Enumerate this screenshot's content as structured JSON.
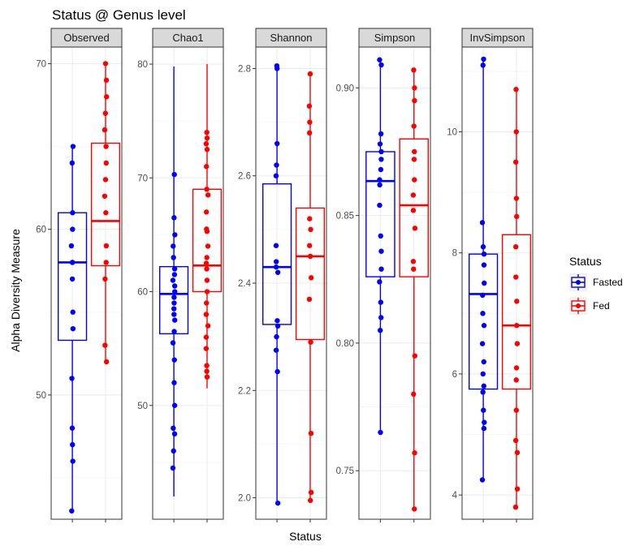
{
  "chart_data": {
    "type": "box",
    "title": "Status  @  Genus level",
    "xlabel": "Status",
    "ylabel": "Alpha Diversity Measure",
    "legend": {
      "title": "Status",
      "position": "right",
      "items": [
        {
          "label": "Fasted",
          "color": "#0000ff"
        },
        {
          "label": "Fed",
          "color": "#ff0000"
        }
      ]
    },
    "categories": [
      "Fasted",
      "Fed"
    ],
    "panels": [
      {
        "name": "Observed",
        "ylim": [
          42.5,
          71
        ],
        "yticks": [
          50,
          60,
          70
        ],
        "series": [
          {
            "name": "Fasted",
            "box": {
              "min": 43,
              "q1": 53.3,
              "median": 58,
              "q3": 61,
              "max": 65
            },
            "points": [
              43,
              46,
              47,
              48,
              51,
              54,
              55,
              57,
              58,
              58,
              59,
              60,
              61,
              64,
              65
            ]
          },
          {
            "name": "Fed",
            "box": {
              "min": 52,
              "q1": 57.8,
              "median": 60.5,
              "q3": 65.2,
              "max": 70
            },
            "points": [
              52,
              53,
              57,
              58,
              59,
              61,
              62,
              63,
              64,
              65,
              66,
              67,
              68,
              69,
              70
            ]
          }
        ]
      },
      {
        "name": "Chao1",
        "ylim": [
          40,
          81.5
        ],
        "yticks": [
          50,
          60,
          70,
          80
        ],
        "series": [
          {
            "name": "Fasted",
            "box": {
              "min": 42,
              "q1": 56.3,
              "median": 59.8,
              "q3": 62.2,
              "max": 79.8
            },
            "points": [
              44.5,
              46,
              47.5,
              48,
              50,
              52,
              54,
              55.5,
              56.5,
              57.5,
              58,
              58.5,
              59,
              59.5,
              60,
              60.5,
              61,
              61.5,
              62,
              63,
              64,
              65,
              66.5,
              70.3
            ]
          },
          {
            "name": "Fed",
            "box": {
              "min": 51.5,
              "q1": 60,
              "median": 62.3,
              "q3": 69,
              "max": 80
            },
            "points": [
              52.5,
              53,
              53.5,
              55,
              56,
              57,
              58,
              59,
              60,
              61,
              62,
              62.5,
              63,
              64,
              65.3,
              65.5,
              67,
              68.5,
              69,
              71,
              72.5,
              73,
              73.5,
              74
            ]
          }
        ]
      },
      {
        "name": "Shannon",
        "ylim": [
          1.96,
          2.84
        ],
        "yticks": [
          2.0,
          2.2,
          2.4,
          2.6,
          2.8
        ],
        "series": [
          {
            "name": "Fasted",
            "box": {
              "min": 1.99,
              "q1": 2.323,
              "median": 2.43,
              "q3": 2.585,
              "max": 2.805
            },
            "points": [
              1.99,
              2.235,
              2.275,
              2.3,
              2.32,
              2.33,
              2.42,
              2.43,
              2.44,
              2.47,
              2.6,
              2.62,
              2.66,
              2.8,
              2.805
            ]
          },
          {
            "name": "Fed",
            "box": {
              "min": 1.995,
              "q1": 2.295,
              "median": 2.45,
              "q3": 2.54,
              "max": 2.79
            },
            "points": [
              1.995,
              2.01,
              2.12,
              2.29,
              2.37,
              2.41,
              2.45,
              2.47,
              2.5,
              2.52,
              2.68,
              2.7,
              2.73,
              2.79
            ]
          }
        ]
      },
      {
        "name": "Simpson",
        "ylim": [
          0.731,
          0.916
        ],
        "yticks": [
          0.75,
          0.8,
          0.85,
          0.9
        ],
        "series": [
          {
            "name": "Fasted",
            "box": {
              "min": 0.765,
              "q1": 0.826,
              "median": 0.8635,
              "q3": 0.875,
              "max": 0.911
            },
            "points": [
              0.765,
              0.805,
              0.81,
              0.816,
              0.824,
              0.829,
              0.836,
              0.842,
              0.854,
              0.862,
              0.864,
              0.868,
              0.872,
              0.875,
              0.878,
              0.882,
              0.909,
              0.911
            ]
          },
          {
            "name": "Fed",
            "box": {
              "min": 0.735,
              "q1": 0.826,
              "median": 0.854,
              "q3": 0.88,
              "max": 0.907
            },
            "points": [
              0.735,
              0.757,
              0.78,
              0.795,
              0.829,
              0.832,
              0.845,
              0.852,
              0.858,
              0.864,
              0.872,
              0.875,
              0.885,
              0.895,
              0.9,
              0.907
            ]
          }
        ]
      },
      {
        "name": "InvSimpson",
        "ylim": [
          3.6,
          11.4
        ],
        "yticks": [
          4,
          6,
          8,
          10
        ],
        "series": [
          {
            "name": "Fasted",
            "box": {
              "min": 4.25,
              "q1": 5.75,
              "median": 7.32,
              "q3": 7.98,
              "max": 11.2
            },
            "points": [
              4.25,
              5.1,
              5.2,
              5.4,
              5.7,
              5.8,
              6.0,
              6.2,
              6.5,
              6.8,
              7.0,
              7.3,
              7.5,
              7.8,
              7.98,
              8.1,
              8.5,
              11.1,
              11.2
            ]
          },
          {
            "name": "Fed",
            "box": {
              "min": 3.8,
              "q1": 5.75,
              "median": 6.8,
              "q3": 8.3,
              "max": 10.7
            },
            "points": [
              3.8,
              4.1,
              4.7,
              4.9,
              5.4,
              5.9,
              6.1,
              6.5,
              6.8,
              7.2,
              7.6,
              8.1,
              8.6,
              8.9,
              9.5,
              10.0,
              10.7
            ]
          }
        ]
      }
    ]
  }
}
